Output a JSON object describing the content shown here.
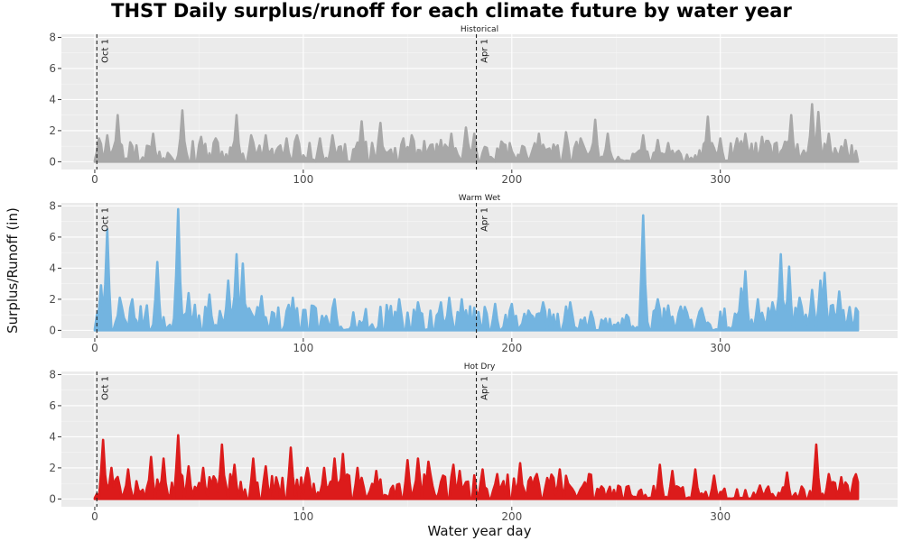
{
  "chart_data": {
    "type": "area",
    "title": "THST Daily surplus/runoff for each climate future by water year",
    "xlabel": "Water year day",
    "ylabel": "Surplus/Runoff (in)",
    "xlim": [
      -16,
      385
    ],
    "ylim": [
      -0.5,
      8.2
    ],
    "x_ticks": [
      0,
      100,
      200,
      300
    ],
    "y_ticks": [
      0,
      2,
      4,
      6,
      8
    ],
    "grid": true,
    "reference_lines": [
      {
        "x": 1,
        "label": "Oct 1"
      },
      {
        "x": 183,
        "label": "Apr 1"
      }
    ],
    "panels": [
      {
        "name": "Historical",
        "color": "#a8a8a8",
        "seed": 11,
        "base": 0.7,
        "noise": 0.65,
        "peaks": [
          [
            2,
            1.5
          ],
          [
            6,
            1.7
          ],
          [
            11,
            3.0
          ],
          [
            28,
            1.8
          ],
          [
            42,
            3.3
          ],
          [
            51,
            1.6
          ],
          [
            58,
            1.5
          ],
          [
            68,
            3.0
          ],
          [
            75,
            1.7
          ],
          [
            82,
            1.7
          ],
          [
            92,
            1.5
          ],
          [
            97,
            1.7
          ],
          [
            108,
            1.5
          ],
          [
            114,
            1.7
          ],
          [
            128,
            2.6
          ],
          [
            137,
            2.5
          ],
          [
            148,
            1.5
          ],
          [
            152,
            1.7
          ],
          [
            166,
            1.4
          ],
          [
            171,
            1.8
          ],
          [
            178,
            2.2
          ],
          [
            182,
            1.8
          ],
          [
            195,
            1.3
          ],
          [
            213,
            1.8
          ],
          [
            226,
            1.9
          ],
          [
            233,
            1.5
          ],
          [
            240,
            2.7
          ],
          [
            246,
            1.8
          ],
          [
            263,
            1.7
          ],
          [
            270,
            1.4
          ],
          [
            275,
            1.2
          ],
          [
            294,
            2.9
          ],
          [
            300,
            1.5
          ],
          [
            308,
            1.5
          ],
          [
            312,
            1.8
          ],
          [
            320,
            1.6
          ],
          [
            334,
            3.0
          ],
          [
            344,
            3.7
          ],
          [
            347,
            3.2
          ],
          [
            352,
            1.8
          ],
          [
            360,
            1.4
          ]
        ],
        "quiet": [
          [
            245,
            290
          ]
        ]
      },
      {
        "name": "Warm Wet",
        "color": "#73b4e0",
        "seed": 23,
        "base": 0.9,
        "noise": 0.75,
        "peaks": [
          [
            3,
            2.9
          ],
          [
            6,
            6.5
          ],
          [
            12,
            2.1
          ],
          [
            18,
            2.0
          ],
          [
            30,
            4.4
          ],
          [
            40,
            7.8
          ],
          [
            45,
            2.4
          ],
          [
            55,
            2.3
          ],
          [
            64,
            3.2
          ],
          [
            68,
            4.9
          ],
          [
            71,
            4.3
          ],
          [
            80,
            2.2
          ],
          [
            95,
            2.1
          ],
          [
            115,
            2.0
          ],
          [
            146,
            2.0
          ],
          [
            155,
            1.8
          ],
          [
            166,
            1.8
          ],
          [
            170,
            2.1
          ],
          [
            176,
            2.0
          ],
          [
            192,
            1.7
          ],
          [
            200,
            1.7
          ],
          [
            215,
            1.8
          ],
          [
            228,
            1.8
          ],
          [
            238,
            1.2
          ],
          [
            255,
            1.0
          ],
          [
            263,
            7.4
          ],
          [
            270,
            2.0
          ],
          [
            275,
            1.6
          ],
          [
            283,
            1.4
          ],
          [
            290,
            1.2
          ],
          [
            310,
            2.7
          ],
          [
            312,
            3.8
          ],
          [
            318,
            2.0
          ],
          [
            325,
            1.8
          ],
          [
            329,
            4.9
          ],
          [
            333,
            4.1
          ],
          [
            338,
            2.1
          ],
          [
            344,
            2.6
          ],
          [
            348,
            3.2
          ],
          [
            350,
            3.7
          ],
          [
            357,
            2.5
          ],
          [
            362,
            1.5
          ]
        ],
        "quiet": [
          [
            230,
            260
          ]
        ]
      },
      {
        "name": "Hot Dry",
        "color": "#dc1b1b",
        "seed": 37,
        "base": 0.85,
        "noise": 0.75,
        "peaks": [
          [
            4,
            3.8
          ],
          [
            8,
            2.0
          ],
          [
            16,
            1.9
          ],
          [
            27,
            2.7
          ],
          [
            33,
            2.6
          ],
          [
            40,
            4.1
          ],
          [
            45,
            2.1
          ],
          [
            52,
            2.0
          ],
          [
            61,
            3.5
          ],
          [
            67,
            2.2
          ],
          [
            76,
            2.6
          ],
          [
            82,
            2.1
          ],
          [
            94,
            3.3
          ],
          [
            102,
            2.0
          ],
          [
            110,
            2.0
          ],
          [
            115,
            2.6
          ],
          [
            119,
            2.9
          ],
          [
            126,
            2.0
          ],
          [
            135,
            1.8
          ],
          [
            150,
            2.5
          ],
          [
            155,
            2.6
          ],
          [
            160,
            2.4
          ],
          [
            172,
            2.2
          ],
          [
            175,
            1.8
          ],
          [
            186,
            1.9
          ],
          [
            193,
            1.6
          ],
          [
            204,
            2.3
          ],
          [
            212,
            1.6
          ],
          [
            223,
            1.9
          ],
          [
            237,
            1.6
          ],
          [
            271,
            2.2
          ],
          [
            277,
            1.8
          ],
          [
            288,
            1.9
          ],
          [
            297,
            1.5
          ],
          [
            332,
            1.7
          ],
          [
            346,
            3.5
          ],
          [
            352,
            1.6
          ],
          [
            358,
            1.4
          ]
        ],
        "quiet": [
          [
            240,
            340
          ]
        ]
      }
    ]
  }
}
